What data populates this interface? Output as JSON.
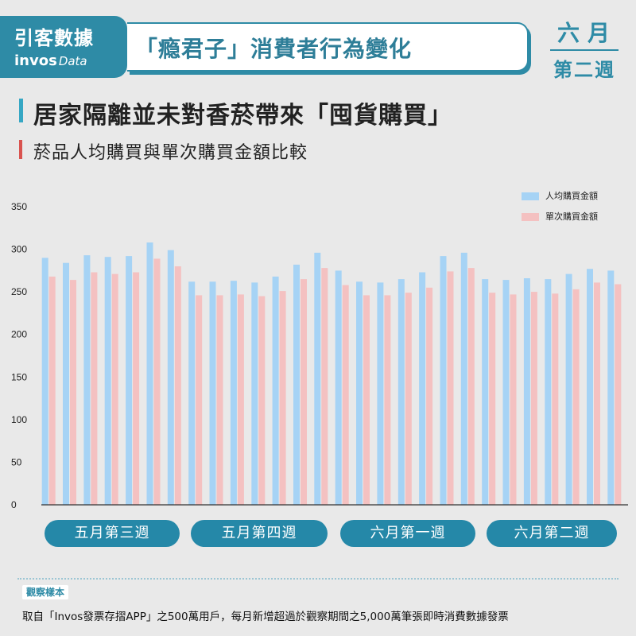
{
  "brand": {
    "name": "引客數據",
    "en_bold": "invos",
    "en_light": "Data"
  },
  "header": {
    "title": "「瘾君子」消費者行為變化",
    "period_month": "六月",
    "period_week": "第二週"
  },
  "headline": "居家隔離並未對香菸帶來「囤貨購買」",
  "subheadline": "菸品人均購買與單次購買金額比較",
  "colors": {
    "accent": "#2e8ba6",
    "series_per_capita": "#a6d3f5",
    "series_per_transaction": "#f4c1c1"
  },
  "chart_data": {
    "type": "bar",
    "title": "",
    "xlabel": "",
    "ylabel": "",
    "ylim": [
      0,
      350
    ],
    "yticks": [
      0,
      50,
      100,
      150,
      200,
      250,
      300,
      350
    ],
    "grid": false,
    "legend_position": "top-right",
    "x": [
      "1",
      "2",
      "3",
      "4",
      "5",
      "6",
      "7",
      "8",
      "9",
      "10",
      "11",
      "12",
      "13",
      "14",
      "15",
      "16",
      "17",
      "18",
      "19",
      "20",
      "21",
      "22",
      "23",
      "24",
      "25",
      "26",
      "27",
      "28"
    ],
    "series": [
      {
        "name": "人均購買金額",
        "color": "#a6d3f5",
        "values": [
          290,
          284,
          293,
          291,
          292,
          308,
          299,
          262,
          262,
          263,
          261,
          268,
          282,
          296,
          275,
          262,
          261,
          265,
          273,
          292,
          296,
          265,
          264,
          266,
          265,
          271,
          277,
          275
        ]
      },
      {
        "name": "單次購買金額",
        "color": "#f4c1c1",
        "values": [
          268,
          264,
          273,
          271,
          273,
          289,
          280,
          246,
          246,
          247,
          245,
          251,
          265,
          278,
          258,
          246,
          246,
          249,
          255,
          274,
          278,
          249,
          247,
          250,
          248,
          253,
          261,
          259
        ]
      }
    ],
    "groups": [
      {
        "label": "五月第三週",
        "from": 0,
        "to": 6
      },
      {
        "label": "五月第四週",
        "from": 7,
        "to": 13
      },
      {
        "label": "六月第一週",
        "from": 14,
        "to": 20
      },
      {
        "label": "六月第二週",
        "from": 21,
        "to": 27
      }
    ]
  },
  "footer": {
    "tag": "觀察樣本",
    "text": "取自「Invos發票存摺APP」之500萬用戶，每月新增超過於觀察期間之5,000萬筆張即時消費數據發票"
  }
}
